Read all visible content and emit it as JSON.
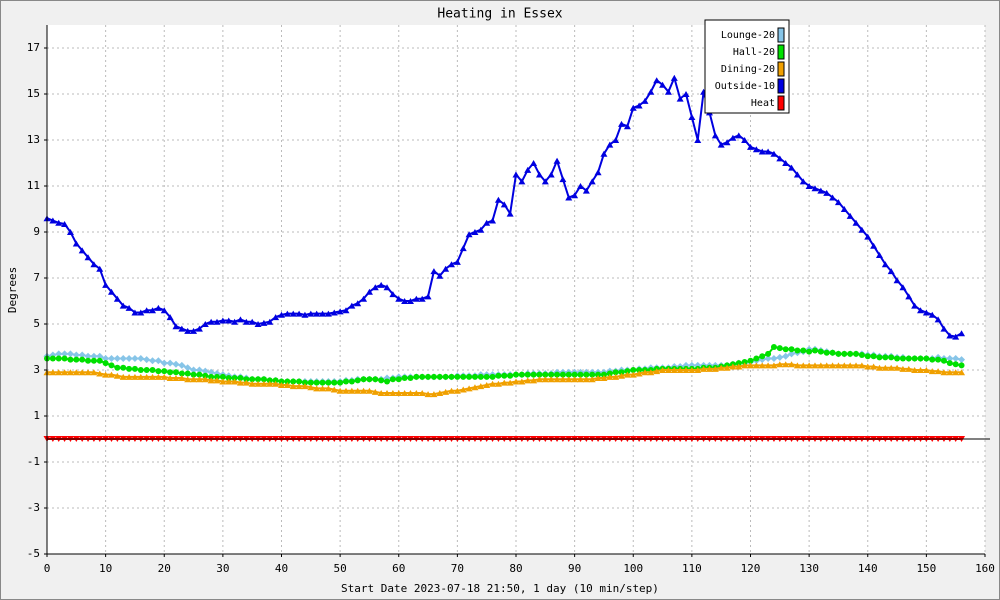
{
  "chart_data": {
    "type": "line",
    "title": "Heating in Essex",
    "x_label": "Start Date 2023-07-18 21:50, 1 day (10 min/step)",
    "y_label": "Degrees",
    "xlim": [
      0,
      160
    ],
    "ylim": [
      -5,
      18
    ],
    "xticks": [
      0,
      10,
      20,
      30,
      40,
      50,
      60,
      70,
      80,
      90,
      100,
      110,
      120,
      130,
      140,
      150,
      160
    ],
    "yticks": [
      -5,
      -3,
      -1,
      1,
      3,
      5,
      7,
      9,
      11,
      13,
      15,
      17
    ],
    "grid": true,
    "legend": "top-right",
    "x": [
      0,
      1,
      2,
      3,
      4,
      5,
      6,
      7,
      8,
      9,
      10,
      11,
      12,
      13,
      14,
      15,
      16,
      17,
      18,
      19,
      20,
      21,
      22,
      23,
      24,
      25,
      26,
      27,
      28,
      29,
      30,
      31,
      32,
      33,
      34,
      35,
      36,
      37,
      38,
      39,
      40,
      41,
      42,
      43,
      44,
      45,
      46,
      47,
      48,
      49,
      50,
      51,
      52,
      53,
      54,
      55,
      56,
      57,
      58,
      59,
      60,
      61,
      62,
      63,
      64,
      65,
      66,
      67,
      68,
      69,
      70,
      71,
      72,
      73,
      74,
      75,
      76,
      77,
      78,
      79,
      80,
      81,
      82,
      83,
      84,
      85,
      86,
      87,
      88,
      89,
      90,
      91,
      92,
      93,
      94,
      95,
      96,
      97,
      98,
      99,
      100,
      101,
      102,
      103,
      104,
      105,
      106,
      107,
      108,
      109,
      110,
      111,
      112,
      113,
      114,
      115,
      116,
      117,
      118,
      119,
      120,
      121,
      122,
      123,
      124,
      125,
      126,
      127,
      128,
      129,
      130,
      131,
      132,
      133,
      134,
      135,
      136,
      137,
      138,
      139,
      140,
      141,
      142,
      143,
      144,
      145,
      146,
      147,
      148,
      149,
      150,
      151,
      152,
      153,
      154,
      155,
      156
    ],
    "series": [
      {
        "name": "Lounge-20",
        "color": "#87c5e8",
        "marker": "diamond",
        "values": [
          3.6,
          3.65,
          3.7,
          3.7,
          3.7,
          3.65,
          3.65,
          3.6,
          3.6,
          3.6,
          3.5,
          3.5,
          3.5,
          3.5,
          3.5,
          3.5,
          3.5,
          3.45,
          3.4,
          3.4,
          3.3,
          3.3,
          3.25,
          3.2,
          3.1,
          3.0,
          3.0,
          2.95,
          2.9,
          2.85,
          2.8,
          2.75,
          2.7,
          2.7,
          2.65,
          2.6,
          2.6,
          2.6,
          2.55,
          2.55,
          2.5,
          2.5,
          2.5,
          2.5,
          2.5,
          2.5,
          2.5,
          2.5,
          2.5,
          2.5,
          2.5,
          2.55,
          2.55,
          2.6,
          2.6,
          2.6,
          2.6,
          2.6,
          2.65,
          2.65,
          2.7,
          2.7,
          2.7,
          2.7,
          2.7,
          2.7,
          2.7,
          2.7,
          2.7,
          2.7,
          2.75,
          2.75,
          2.75,
          2.75,
          2.8,
          2.8,
          2.8,
          2.8,
          2.8,
          2.8,
          2.8,
          2.8,
          2.85,
          2.85,
          2.85,
          2.85,
          2.85,
          2.9,
          2.9,
          2.9,
          2.9,
          2.9,
          2.9,
          2.9,
          2.9,
          2.9,
          2.95,
          2.95,
          3.0,
          3.0,
          3.0,
          3.05,
          3.05,
          3.1,
          3.1,
          3.1,
          3.1,
          3.15,
          3.15,
          3.2,
          3.2,
          3.2,
          3.2,
          3.2,
          3.2,
          3.2,
          3.2,
          3.25,
          3.3,
          3.3,
          3.35,
          3.4,
          3.45,
          3.5,
          3.5,
          3.55,
          3.6,
          3.7,
          3.75,
          3.8,
          3.9,
          3.9,
          3.85,
          3.8,
          3.75,
          3.7,
          3.7,
          3.7,
          3.7,
          3.7,
          3.65,
          3.65,
          3.6,
          3.6,
          3.6,
          3.55,
          3.55,
          3.5,
          3.5,
          3.5,
          3.5,
          3.5,
          3.55,
          3.5,
          3.5,
          3.5,
          3.45
        ]
      },
      {
        "name": "Hall-20",
        "color": "#00e000",
        "marker": "circle",
        "values": [
          3.5,
          3.5,
          3.5,
          3.5,
          3.45,
          3.45,
          3.45,
          3.4,
          3.4,
          3.4,
          3.3,
          3.2,
          3.1,
          3.1,
          3.05,
          3.05,
          3.0,
          3.0,
          3.0,
          2.95,
          2.95,
          2.9,
          2.9,
          2.85,
          2.85,
          2.8,
          2.8,
          2.75,
          2.7,
          2.7,
          2.7,
          2.65,
          2.65,
          2.65,
          2.6,
          2.6,
          2.6,
          2.6,
          2.55,
          2.55,
          2.5,
          2.5,
          2.5,
          2.5,
          2.45,
          2.45,
          2.45,
          2.45,
          2.45,
          2.45,
          2.45,
          2.5,
          2.5,
          2.55,
          2.6,
          2.6,
          2.6,
          2.55,
          2.5,
          2.6,
          2.6,
          2.65,
          2.65,
          2.7,
          2.7,
          2.7,
          2.7,
          2.7,
          2.7,
          2.7,
          2.7,
          2.7,
          2.7,
          2.7,
          2.7,
          2.7,
          2.7,
          2.75,
          2.75,
          2.75,
          2.8,
          2.8,
          2.8,
          2.8,
          2.8,
          2.8,
          2.8,
          2.8,
          2.8,
          2.8,
          2.8,
          2.8,
          2.8,
          2.8,
          2.8,
          2.8,
          2.85,
          2.9,
          2.9,
          2.95,
          3.0,
          3.0,
          3.0,
          3.0,
          3.05,
          3.05,
          3.05,
          3.05,
          3.05,
          3.05,
          3.05,
          3.05,
          3.1,
          3.1,
          3.1,
          3.15,
          3.2,
          3.25,
          3.3,
          3.35,
          3.4,
          3.5,
          3.6,
          3.7,
          4.0,
          3.95,
          3.9,
          3.9,
          3.85,
          3.85,
          3.8,
          3.85,
          3.8,
          3.75,
          3.75,
          3.7,
          3.7,
          3.7,
          3.7,
          3.65,
          3.6,
          3.6,
          3.55,
          3.55,
          3.55,
          3.5,
          3.5,
          3.5,
          3.5,
          3.5,
          3.5,
          3.45,
          3.45,
          3.4,
          3.3,
          3.25,
          3.2
        ]
      },
      {
        "name": "Dining-20",
        "color": "#f0a000",
        "marker": "triangle-up",
        "values": [
          2.9,
          2.9,
          2.9,
          2.9,
          2.9,
          2.9,
          2.9,
          2.9,
          2.9,
          2.85,
          2.8,
          2.8,
          2.75,
          2.7,
          2.7,
          2.7,
          2.7,
          2.7,
          2.7,
          2.7,
          2.7,
          2.65,
          2.65,
          2.65,
          2.6,
          2.6,
          2.6,
          2.6,
          2.55,
          2.55,
          2.5,
          2.5,
          2.5,
          2.45,
          2.45,
          2.4,
          2.4,
          2.4,
          2.4,
          2.4,
          2.35,
          2.35,
          2.3,
          2.3,
          2.3,
          2.25,
          2.2,
          2.2,
          2.2,
          2.15,
          2.1,
          2.1,
          2.1,
          2.1,
          2.1,
          2.1,
          2.05,
          2.0,
          2.0,
          2.0,
          2.0,
          2.0,
          2.0,
          2.0,
          2.0,
          1.95,
          1.95,
          2.0,
          2.05,
          2.1,
          2.1,
          2.15,
          2.2,
          2.25,
          2.3,
          2.35,
          2.4,
          2.4,
          2.45,
          2.45,
          2.5,
          2.5,
          2.55,
          2.55,
          2.6,
          2.6,
          2.6,
          2.6,
          2.6,
          2.6,
          2.6,
          2.6,
          2.6,
          2.6,
          2.65,
          2.65,
          2.7,
          2.7,
          2.75,
          2.8,
          2.8,
          2.85,
          2.9,
          2.9,
          2.95,
          3.0,
          3.0,
          3.0,
          3.0,
          3.0,
          3.0,
          3.0,
          3.05,
          3.05,
          3.05,
          3.1,
          3.1,
          3.15,
          3.15,
          3.2,
          3.2,
          3.2,
          3.2,
          3.2,
          3.2,
          3.25,
          3.25,
          3.25,
          3.2,
          3.2,
          3.2,
          3.2,
          3.2,
          3.2,
          3.2,
          3.2,
          3.2,
          3.2,
          3.2,
          3.2,
          3.15,
          3.15,
          3.1,
          3.1,
          3.1,
          3.1,
          3.05,
          3.05,
          3.0,
          3.0,
          3.0,
          2.95,
          2.95,
          2.9,
          2.9,
          2.9,
          2.9
        ]
      },
      {
        "name": "Outside-10",
        "color": "#0000e0",
        "marker": "triangle-up",
        "values": [
          9.6,
          9.5,
          9.4,
          9.35,
          9.0,
          8.5,
          8.2,
          7.9,
          7.6,
          7.4,
          6.7,
          6.4,
          6.1,
          5.8,
          5.7,
          5.5,
          5.5,
          5.6,
          5.6,
          5.7,
          5.6,
          5.3,
          4.9,
          4.8,
          4.7,
          4.7,
          4.8,
          5.0,
          5.1,
          5.1,
          5.15,
          5.15,
          5.1,
          5.2,
          5.1,
          5.1,
          5.0,
          5.05,
          5.1,
          5.3,
          5.4,
          5.45,
          5.45,
          5.45,
          5.4,
          5.45,
          5.45,
          5.45,
          5.45,
          5.5,
          5.55,
          5.6,
          5.8,
          5.9,
          6.1,
          6.4,
          6.6,
          6.7,
          6.6,
          6.3,
          6.1,
          6.0,
          6.0,
          6.1,
          6.1,
          6.2,
          7.3,
          7.1,
          7.4,
          7.6,
          7.7,
          8.3,
          8.9,
          9.0,
          9.1,
          9.4,
          9.5,
          10.4,
          10.2,
          9.8,
          11.5,
          11.2,
          11.7,
          12.0,
          11.5,
          11.2,
          11.5,
          12.1,
          11.3,
          10.5,
          10.6,
          11.0,
          10.8,
          11.2,
          11.6,
          12.4,
          12.8,
          13.0,
          13.7,
          13.6,
          14.4,
          14.5,
          14.7,
          15.1,
          15.6,
          15.4,
          15.1,
          15.7,
          14.8,
          15.0,
          14.0,
          13.0,
          15.1,
          14.2,
          13.2,
          12.8,
          12.9,
          13.1,
          13.2,
          13.0,
          12.7,
          12.6,
          12.5,
          12.5,
          12.4,
          12.2,
          12.0,
          11.8,
          11.5,
          11.2,
          11.0,
          10.9,
          10.8,
          10.7,
          10.5,
          10.3,
          10.0,
          9.7,
          9.4,
          9.1,
          8.8,
          8.4,
          8.0,
          7.6,
          7.3,
          6.9,
          6.6,
          6.2,
          5.8,
          5.6,
          5.5,
          5.4,
          5.2,
          4.8,
          4.5,
          4.45,
          4.6
        ]
      },
      {
        "name": "Heat",
        "color": "#ff0000",
        "marker": "triangle-down",
        "values": [
          0,
          0,
          0,
          0,
          0,
          0,
          0,
          0,
          0,
          0,
          0,
          0,
          0,
          0,
          0,
          0,
          0,
          0,
          0,
          0,
          0,
          0,
          0,
          0,
          0,
          0,
          0,
          0,
          0,
          0,
          0,
          0,
          0,
          0,
          0,
          0,
          0,
          0,
          0,
          0,
          0,
          0,
          0,
          0,
          0,
          0,
          0,
          0,
          0,
          0,
          0,
          0,
          0,
          0,
          0,
          0,
          0,
          0,
          0,
          0,
          0,
          0,
          0,
          0,
          0,
          0,
          0,
          0,
          0,
          0,
          0,
          0,
          0,
          0,
          0,
          0,
          0,
          0,
          0,
          0,
          0,
          0,
          0,
          0,
          0,
          0,
          0,
          0,
          0,
          0,
          0,
          0,
          0,
          0,
          0,
          0,
          0,
          0,
          0,
          0,
          0,
          0,
          0,
          0,
          0,
          0,
          0,
          0,
          0,
          0,
          0,
          0,
          0,
          0,
          0,
          0,
          0,
          0,
          0,
          0,
          0,
          0,
          0,
          0,
          0,
          0,
          0,
          0,
          0,
          0,
          0,
          0,
          0,
          0,
          0,
          0,
          0,
          0,
          0,
          0,
          0,
          0,
          0,
          0,
          0,
          0,
          0,
          0,
          0,
          0,
          0,
          0,
          0,
          0,
          0,
          0,
          0
        ]
      }
    ]
  }
}
